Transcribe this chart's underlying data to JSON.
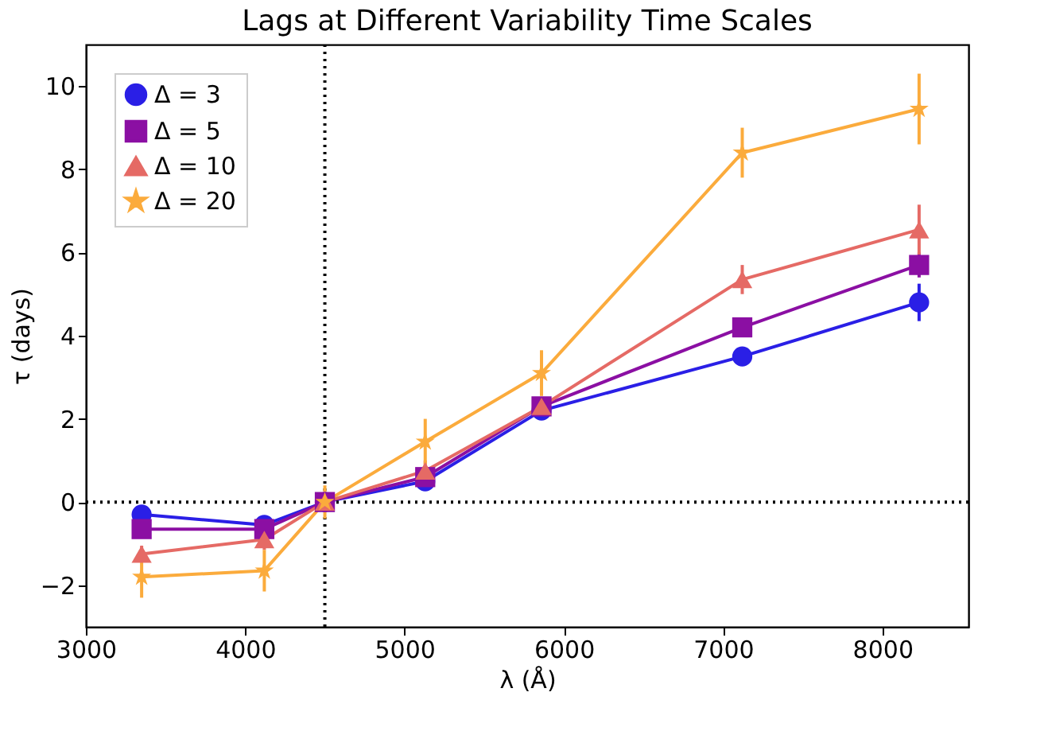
{
  "chart_data": {
    "type": "line",
    "title": "Lags at Different Variability Time Scales",
    "xlabel": "λ (Å)",
    "ylabel": "τ (days)",
    "x": [
      3350,
      4120,
      4500,
      5130,
      5860,
      7120,
      8230
    ],
    "series": [
      {
        "name": "Δ = 3",
        "color": "#2a1fe6",
        "marker": "circle",
        "values": [
          -0.3,
          -0.55,
          0,
          0.5,
          2.2,
          3.5,
          4.8
        ],
        "errors": [
          0.2,
          0.2,
          null,
          0.2,
          0.2,
          0.2,
          0.45
        ]
      },
      {
        "name": "Δ = 5",
        "color": "#8b0fa3",
        "marker": "square",
        "values": [
          -0.65,
          -0.65,
          0,
          0.6,
          2.3,
          4.2,
          5.7
        ],
        "errors": [
          0.2,
          0.2,
          null,
          0.2,
          0.2,
          0.2,
          0.3
        ]
      },
      {
        "name": "Δ = 10",
        "color": "#e56a65",
        "marker": "triangle",
        "values": [
          -1.25,
          -0.9,
          0,
          0.75,
          2.3,
          5.35,
          6.55
        ],
        "errors": [
          0.2,
          0.25,
          null,
          0.25,
          0.2,
          0.35,
          0.6
        ]
      },
      {
        "name": "Δ = 20",
        "color": "#fbab3c",
        "marker": "star",
        "values": [
          -1.8,
          -1.65,
          0,
          1.45,
          3.1,
          8.4,
          9.45
        ],
        "errors": [
          0.5,
          0.5,
          0.4,
          0.55,
          0.55,
          0.6,
          0.85
        ]
      }
    ],
    "xlim": [
      3000,
      8540
    ],
    "ylim": [
      -3,
      11
    ],
    "xticks": [
      3000,
      4000,
      5000,
      6000,
      7000,
      8000
    ],
    "yticks": [
      -2,
      0,
      2,
      4,
      6,
      8,
      10
    ],
    "ref_lines": [
      {
        "axis": "x",
        "value": 4500,
        "line_style": "dotted",
        "color": "#000000"
      },
      {
        "axis": "y",
        "value": 0,
        "line_style": "dotted",
        "color": "#000000"
      }
    ],
    "legend": "top left",
    "grid": false,
    "line_style": "solid"
  }
}
